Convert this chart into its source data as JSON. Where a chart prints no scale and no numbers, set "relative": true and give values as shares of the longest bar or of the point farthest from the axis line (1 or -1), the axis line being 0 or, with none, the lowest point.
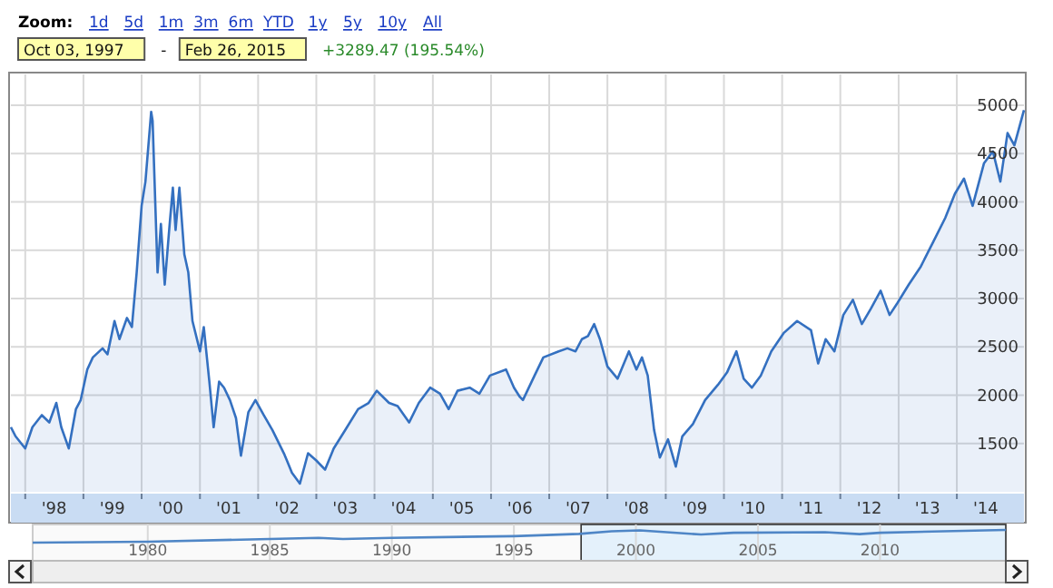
{
  "chart_data": [
    {
      "type": "area",
      "color": "#3470c0",
      "annotations": [
        "Zoom:",
        "1d",
        "5d",
        "1m",
        "3m",
        "6m",
        "YTD",
        "1y",
        "5y",
        "10y",
        "All",
        "Oct 03, 1997",
        "-",
        "Feb 26, 2015",
        "+3289.47 (195.54%)"
      ],
      "xlim": [
        "1997-10-03",
        "2015-02-26"
      ],
      "ylim": [
        1000,
        5320
      ],
      "yticks": [
        1500,
        2000,
        2500,
        3000,
        3500,
        4000,
        4500,
        5000
      ],
      "xticks": [
        {
          "value": "1998-01-01",
          "label": null
        },
        {
          "value": "1998-07-01",
          "label": "'98"
        },
        {
          "value": "1999-01-01",
          "label": null
        },
        {
          "value": "1999-07-01",
          "label": "'99"
        },
        {
          "value": "2000-01-01",
          "label": null
        },
        {
          "value": "2000-07-01",
          "label": "'00"
        },
        {
          "value": "2001-01-01",
          "label": null
        },
        {
          "value": "2001-07-01",
          "label": "'01"
        },
        {
          "value": "2002-01-01",
          "label": null
        },
        {
          "value": "2002-07-01",
          "label": "'02"
        },
        {
          "value": "2003-01-01",
          "label": null
        },
        {
          "value": "2003-07-01",
          "label": "'03"
        },
        {
          "value": "2004-01-01",
          "label": null
        },
        {
          "value": "2004-07-01",
          "label": "'04"
        },
        {
          "value": "2005-01-01",
          "label": null
        },
        {
          "value": "2005-07-01",
          "label": "'05"
        },
        {
          "value": "2006-01-01",
          "label": null
        },
        {
          "value": "2006-07-01",
          "label": "'06"
        },
        {
          "value": "2007-01-01",
          "label": null
        },
        {
          "value": "2007-07-01",
          "label": "'07"
        },
        {
          "value": "2008-01-01",
          "label": null
        },
        {
          "value": "2008-07-01",
          "label": "'08"
        },
        {
          "value": "2009-01-01",
          "label": null
        },
        {
          "value": "2009-07-01",
          "label": "'09"
        },
        {
          "value": "2010-01-01",
          "label": null
        },
        {
          "value": "2010-07-01",
          "label": "'10"
        },
        {
          "value": "2011-01-01",
          "label": null
        },
        {
          "value": "2011-07-01",
          "label": "'11"
        },
        {
          "value": "2012-01-01",
          "label": null
        },
        {
          "value": "2012-07-01",
          "label": "'12"
        },
        {
          "value": "2013-01-01",
          "label": null
        },
        {
          "value": "2013-07-01",
          "label": "'13"
        },
        {
          "value": "2014-01-01",
          "label": null
        },
        {
          "value": "2014-07-01",
          "label": "'14"
        }
      ],
      "grid": true,
      "x": [
        "1997-10-03",
        "1997-11-01",
        "1998-01-01",
        "1998-02-15",
        "1998-04-15",
        "1998-06-01",
        "1998-07-15",
        "1998-08-15",
        "1998-10-01",
        "1998-11-15",
        "1998-12-15",
        "1999-01-25",
        "1999-03-01",
        "1999-05-01",
        "1999-06-01",
        "1999-07-15",
        "1999-08-15",
        "1999-10-01",
        "1999-11-01",
        "1999-12-01",
        "2000-01-01",
        "2000-01-25",
        "2000-03-01",
        "2000-03-10",
        "2000-04-10",
        "2000-05-01",
        "2000-05-25",
        "2000-06-25",
        "2000-07-15",
        "2000-08-01",
        "2000-08-25",
        "2000-09-25",
        "2000-10-20",
        "2000-11-15",
        "2001-01-01",
        "2001-01-25",
        "2001-03-01",
        "2001-03-28",
        "2001-05-01",
        "2001-06-01",
        "2001-07-08",
        "2001-08-15",
        "2001-09-15",
        "2001-11-01",
        "2001-12-15",
        "2002-02-05",
        "2002-04-01",
        "2002-06-15",
        "2002-08-01",
        "2002-09-20",
        "2002-11-10",
        "2003-01-01",
        "2003-02-25",
        "2003-04-20",
        "2003-07-01",
        "2003-09-20",
        "2003-11-25",
        "2004-01-15",
        "2004-04-01",
        "2004-05-25",
        "2004-08-05",
        "2004-10-05",
        "2004-12-15",
        "2005-02-15",
        "2005-04-10",
        "2005-06-05",
        "2005-08-20",
        "2005-10-20",
        "2005-12-25",
        "2006-04-05",
        "2006-05-25",
        "2006-07-01",
        "2006-07-20",
        "2006-10-01",
        "2006-11-25",
        "2007-03-01",
        "2007-04-25",
        "2007-06-15",
        "2007-07-25",
        "2007-09-01",
        "2007-10-10",
        "2007-11-15",
        "2008-01-01",
        "2008-03-05",
        "2008-05-15",
        "2008-07-01",
        "2008-08-05",
        "2008-09-10",
        "2008-10-20",
        "2008-11-25",
        "2009-01-15",
        "2009-03-05",
        "2009-04-15",
        "2009-06-20",
        "2009-09-05",
        "2009-11-25",
        "2010-01-20",
        "2010-03-20",
        "2010-05-05",
        "2010-06-25",
        "2010-08-20",
        "2010-10-25",
        "2011-01-10",
        "2011-04-05",
        "2011-07-01",
        "2011-08-15",
        "2011-10-01",
        "2011-11-25",
        "2012-01-20",
        "2012-03-20",
        "2012-05-15",
        "2012-07-10",
        "2012-09-10",
        "2012-11-05",
        "2012-12-25",
        "2013-03-05",
        "2013-05-20",
        "2013-08-05",
        "2013-10-20",
        "2013-12-20",
        "2014-02-15",
        "2014-04-10",
        "2014-06-20",
        "2014-08-15",
        "2014-10-01",
        "2014-11-15",
        "2014-12-28",
        "2015-02-26"
      ],
      "values": [
        1669,
        1575,
        1449,
        1669,
        1794,
        1718,
        1920,
        1669,
        1449,
        1856,
        1950,
        2266,
        2391,
        2485,
        2423,
        2768,
        2580,
        2799,
        2705,
        3270,
        3960,
        4211,
        4933,
        4838,
        3270,
        3772,
        3145,
        3772,
        4148,
        3709,
        4148,
        3458,
        3270,
        2768,
        2454,
        2705,
        2140,
        1669,
        2140,
        2078,
        1950,
        1763,
        1374,
        1826,
        1950,
        1794,
        1638,
        1386,
        1198,
        1085,
        1399,
        1324,
        1230,
        1449,
        1638,
        1856,
        1920,
        2046,
        1920,
        1888,
        1718,
        1920,
        2078,
        2015,
        1856,
        2046,
        2078,
        2015,
        2203,
        2266,
        2078,
        1982,
        1950,
        2203,
        2391,
        2454,
        2485,
        2454,
        2580,
        2611,
        2736,
        2580,
        2297,
        2171,
        2454,
        2266,
        2391,
        2203,
        1638,
        1355,
        1543,
        1261,
        1575,
        1700,
        1950,
        2109,
        2234,
        2454,
        2171,
        2078,
        2203,
        2454,
        2642,
        2768,
        2673,
        2328,
        2580,
        2454,
        2830,
        2987,
        2736,
        2893,
        3081,
        2830,
        2956,
        3144,
        3332,
        3583,
        3834,
        4085,
        4242,
        3960,
        4399,
        4524,
        4211,
        4713,
        4587,
        4950
      ]
    },
    {
      "type": "line",
      "relative": true,
      "color": "#4f86c6",
      "grid": "x",
      "bands": [
        {
          "axis": "x",
          "from": "1997-10-03",
          "to": "2015-02-26",
          "color": "#e4f1fb"
        }
      ],
      "xlim": [
        "1975-04-15",
        "2015-02-26"
      ],
      "xticks": [
        {
          "value": "1980-01-01",
          "label": "1980"
        },
        {
          "value": "1985-01-01",
          "label": "1985"
        },
        {
          "value": "1990-01-01",
          "label": "1990"
        },
        {
          "value": "1995-01-01",
          "label": "1995"
        },
        {
          "value": "2000-01-01",
          "label": "2000"
        },
        {
          "value": "2005-01-01",
          "label": "2005"
        },
        {
          "value": "2010-01-01",
          "label": "2010"
        }
      ],
      "x": [
        "1975-04-15",
        "1980-01-01",
        "1985-01-01",
        "1987-01-01",
        "1988-01-01",
        "1990-01-01",
        "1995-01-01",
        "1997-09-01",
        "1999-01-01",
        "2000-03-01",
        "2002-09-01",
        "2004-01-01",
        "2007-10-01",
        "2009-03-01",
        "2010-01-01",
        "2015-02-26"
      ],
      "values": [
        0,
        0.07,
        0.29,
        0.38,
        0.29,
        0.38,
        0.51,
        0.69,
        0.89,
        0.96,
        0.64,
        0.78,
        0.82,
        0.67,
        0.78,
        1
      ]
    }
  ]
}
